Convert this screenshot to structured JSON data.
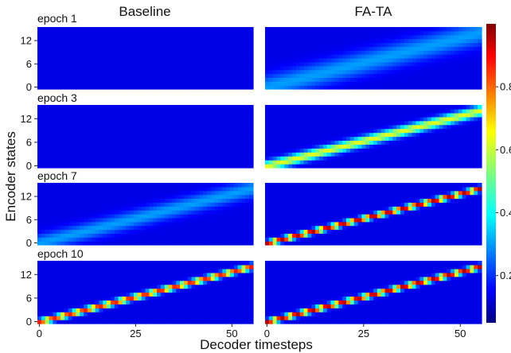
{
  "chart_data": {
    "type": "heatmap",
    "column_titles": [
      "Baseline",
      "FA-TA"
    ],
    "row_labels": [
      "epoch 1",
      "epoch 3",
      "epoch 7",
      "epoch 10"
    ],
    "xlabel": "Decoder timesteps",
    "ylabel": "Encoder states",
    "x_ticks": [
      0,
      25,
      50
    ],
    "y_ticks": [
      0,
      6,
      12
    ],
    "xlim": [
      0,
      55
    ],
    "ylim": [
      0,
      15
    ],
    "colormap": "jet",
    "colorbar": {
      "ticks": [
        0.2,
        0.4,
        0.6,
        0.8
      ],
      "tick_labels": [
        "0.2",
        "0.4",
        "0.6",
        "0.8"
      ],
      "range": [
        0.05,
        1.0
      ]
    },
    "panels": [
      {
        "row": "epoch 1",
        "model": "Baseline",
        "pattern": "uniform",
        "peak": 0.1
      },
      {
        "row": "epoch 1",
        "model": "FA-TA",
        "pattern": "diagonal",
        "peak": 0.28,
        "spread": 2.2
      },
      {
        "row": "epoch 3",
        "model": "Baseline",
        "pattern": "uniform",
        "peak": 0.1
      },
      {
        "row": "epoch 3",
        "model": "FA-TA",
        "pattern": "diagonal",
        "peak": 0.6,
        "spread": 0.9
      },
      {
        "row": "epoch 7",
        "model": "Baseline",
        "pattern": "diagonal",
        "peak": 0.28,
        "spread": 1.6
      },
      {
        "row": "epoch 7",
        "model": "FA-TA",
        "pattern": "diagonal",
        "peak": 0.95,
        "spread": 0.45
      },
      {
        "row": "epoch 10",
        "model": "Baseline",
        "pattern": "diagonal",
        "peak": 0.85,
        "spread": 0.5
      },
      {
        "row": "epoch 10",
        "model": "FA-TA",
        "pattern": "diagonal",
        "peak": 0.95,
        "spread": 0.45
      }
    ]
  }
}
